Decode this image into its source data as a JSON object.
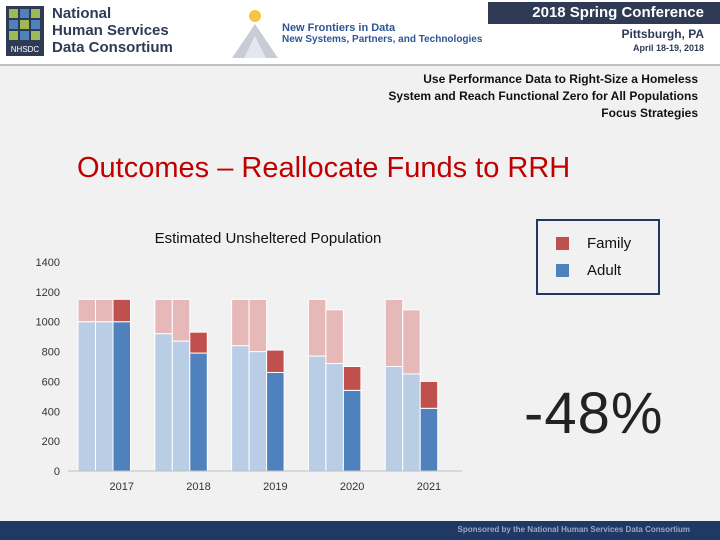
{
  "header": {
    "org_line1": "National",
    "org_line2": "Human Services",
    "org_line3": "Data Consortium",
    "logo_text": "NHSDC",
    "tagline_line1": "New Frontiers in Data",
    "tagline_line2": "New Systems, Partners, and Technologies",
    "conference_title": "2018 Spring Conference",
    "conference_city": "Pittsburgh, PA",
    "conference_dates": "April 18-19, 2018"
  },
  "subtitle": {
    "line1": "Use Performance Data to Right-Size a Homeless",
    "line2": "System and Reach Functional Zero for All Populations",
    "line3": "Focus Strategies"
  },
  "slide_title": "Outcomes – Reallocate Funds to RRH",
  "percent_change": "-48%",
  "footer_text": "Sponsored by the National Human Services Data Consortium",
  "colors": {
    "family": "#c0504d",
    "adult": "#4f81bd",
    "family_light": "#e6b9b8",
    "adult_light": "#b9cde5"
  },
  "chart_data": {
    "type": "bar",
    "stacked": true,
    "title": "Estimated Unsheltered Population",
    "categories": [
      "2017",
      "2018",
      "2019",
      "2020",
      "2021"
    ],
    "bars_per_category": 3,
    "note": "first two bars in each year group are shown faded; third bar is the highlighted projection",
    "series": [
      {
        "name": "Adult",
        "values": [
          [
            1000,
            1000,
            1000
          ],
          [
            920,
            870,
            790
          ],
          [
            840,
            800,
            660
          ],
          [
            770,
            720,
            540
          ],
          [
            700,
            650,
            420
          ]
        ]
      },
      {
        "name": "Family",
        "values": [
          [
            150,
            150,
            150
          ],
          [
            230,
            280,
            140
          ],
          [
            310,
            350,
            150
          ],
          [
            380,
            360,
            160
          ],
          [
            450,
            430,
            180
          ]
        ]
      }
    ],
    "ylim": [
      0,
      1400
    ],
    "yticks": [
      0,
      200,
      400,
      600,
      800,
      1000,
      1200,
      1400
    ],
    "legend": [
      "Family",
      "Adult"
    ],
    "legend_position": "top-right",
    "grid": false
  }
}
